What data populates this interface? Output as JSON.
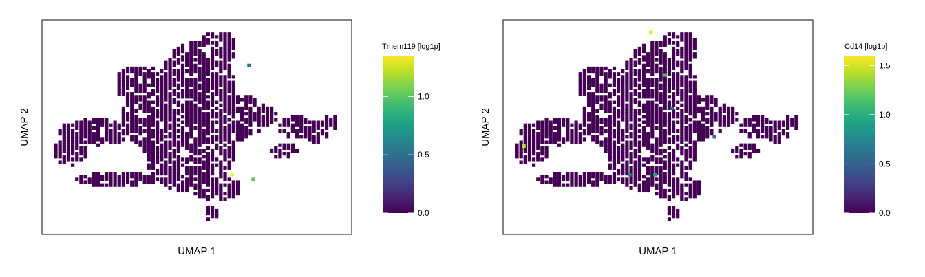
{
  "figure": {
    "colormap": [
      "#440154",
      "#482475",
      "#414487",
      "#355f8d",
      "#2a788e",
      "#21918c",
      "#22a884",
      "#44bf70",
      "#7ad151",
      "#bddf26",
      "#fde725"
    ],
    "background": "#ffffff"
  },
  "chart_data": [
    {
      "type": "scatter",
      "title": "",
      "xlabel": "UMAP 1",
      "ylabel": "UMAP 2",
      "x_ticks_shown": false,
      "y_ticks_shown": false,
      "grid": false,
      "legend": "colorbar-right",
      "colorbar": {
        "label": "Tmem119 [log1p]",
        "min": 0.0,
        "max": 1.35,
        "ticks": [
          0.0,
          0.5,
          1.0
        ],
        "tick_labels": [
          "0.0",
          "0.5",
          "1.0"
        ]
      },
      "series": [
        {
          "values_description": "",
          "x": [
            0.25,
            0.37,
            0.4
          ],
          "y": [
            -0.5,
            0.65,
            -0.55
          ],
          "values": [
            1.35,
            0.55,
            1.0
          ]
        }
      ]
    },
    {
      "type": "scatter",
      "title": "",
      "xlabel": "UMAP 1",
      "ylabel": "UMAP 2",
      "x_ticks_shown": false,
      "y_ticks_shown": false,
      "grid": false,
      "legend": "colorbar-right",
      "colorbar": {
        "label": "Cd14 [log1p]",
        "min": 0.0,
        "max": 1.6,
        "ticks": [
          0.0,
          0.5,
          1.0,
          1.5
        ],
        "tick_labels": [
          "0.0",
          "0.5",
          "1.0",
          "1.5"
        ]
      },
      "series": [
        {
          "x": [
            -0.05,
            0.05,
            -0.02,
            0.4,
            -0.95,
            -0.2,
            0.1
          ],
          "y": [
            1.0,
            0.55,
            -0.5,
            -0.1,
            -0.2,
            -0.5,
            0.2
          ],
          "values": [
            1.55,
            1.1,
            0.9,
            0.6,
            1.4,
            0.7,
            0.5
          ]
        }
      ]
    }
  ]
}
